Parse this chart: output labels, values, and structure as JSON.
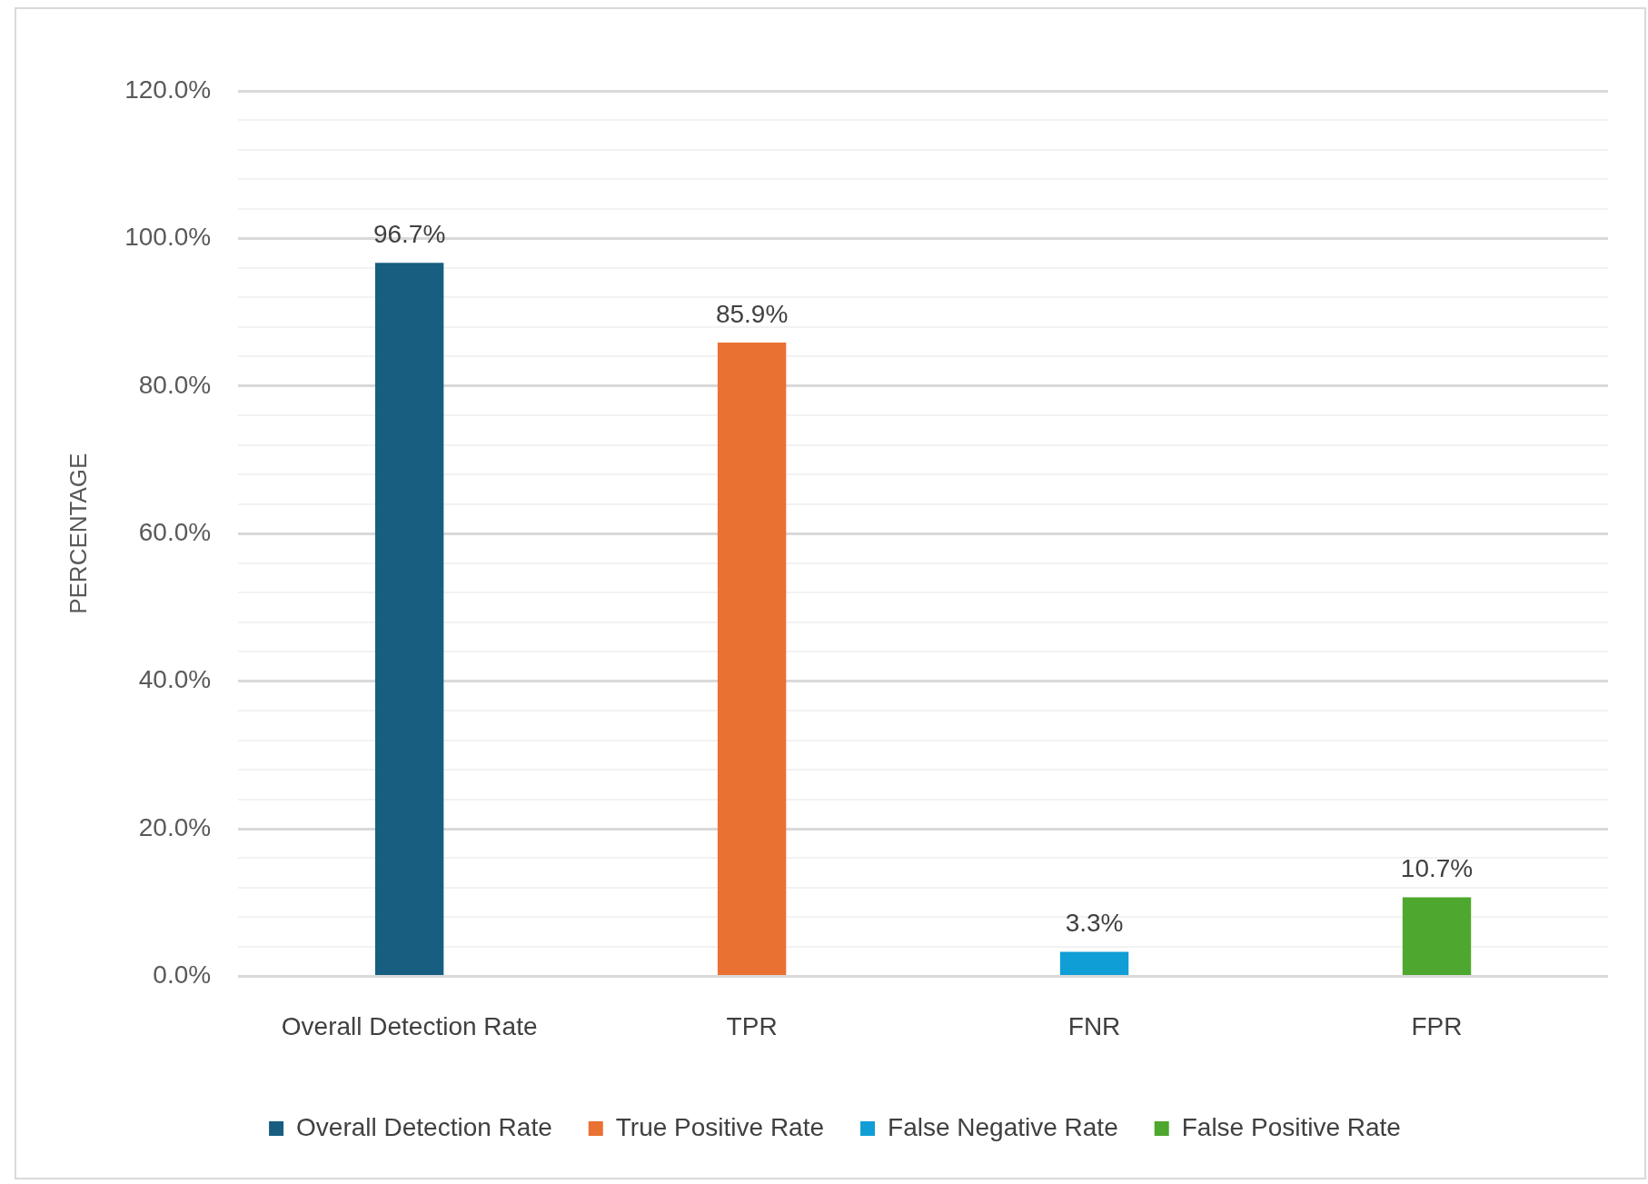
{
  "chart_data": {
    "type": "bar",
    "ylabel": "PERCENTAGE",
    "categories": [
      "Overall Detection Rate",
      "TPR",
      "FNR",
      "FPR"
    ],
    "series": [
      {
        "name": "Overall Detection Rate",
        "color": "#175e81",
        "values": [
          96.7,
          null,
          null,
          null
        ],
        "value_labels": [
          "96.7%",
          null,
          null,
          null
        ]
      },
      {
        "name": "True Positive Rate",
        "color": "#e97132",
        "values": [
          null,
          85.9,
          null,
          null
        ],
        "value_labels": [
          null,
          "85.9%",
          null,
          null
        ]
      },
      {
        "name": "False Negative Rate",
        "color": "#0f9ed5",
        "values": [
          null,
          null,
          3.3,
          null
        ],
        "value_labels": [
          null,
          null,
          "3.3%",
          null
        ]
      },
      {
        "name": "False Positive Rate",
        "color": "#4ea72e",
        "values": [
          null,
          null,
          null,
          10.7
        ],
        "value_labels": [
          null,
          null,
          null,
          "10.7%"
        ]
      }
    ],
    "ylim": [
      0,
      120
    ],
    "yticks": [
      {
        "value": 0,
        "label": "0.0%"
      },
      {
        "value": 4,
        "label": null
      },
      {
        "value": 8,
        "label": null
      },
      {
        "value": 12,
        "label": null
      },
      {
        "value": 16,
        "label": null
      },
      {
        "value": 20,
        "label": "20.0%"
      },
      {
        "value": 24,
        "label": null
      },
      {
        "value": 28,
        "label": null
      },
      {
        "value": 32,
        "label": null
      },
      {
        "value": 36,
        "label": null
      },
      {
        "value": 40,
        "label": "40.0%"
      },
      {
        "value": 44,
        "label": null
      },
      {
        "value": 48,
        "label": null
      },
      {
        "value": 52,
        "label": null
      },
      {
        "value": 56,
        "label": null
      },
      {
        "value": 60,
        "label": "60.0%"
      },
      {
        "value": 64,
        "label": null
      },
      {
        "value": 68,
        "label": null
      },
      {
        "value": 72,
        "label": null
      },
      {
        "value": 76,
        "label": null
      },
      {
        "value": 80,
        "label": "80.0%"
      },
      {
        "value": 84,
        "label": null
      },
      {
        "value": 88,
        "label": null
      },
      {
        "value": 92,
        "label": null
      },
      {
        "value": 96,
        "label": null
      },
      {
        "value": 100,
        "label": "100.0%"
      },
      {
        "value": 104,
        "label": null
      },
      {
        "value": 108,
        "label": null
      },
      {
        "value": 112,
        "label": null
      },
      {
        "value": 116,
        "label": null
      },
      {
        "value": 120,
        "label": "120.0%"
      }
    ],
    "grid": "y",
    "legend": "bottom"
  }
}
